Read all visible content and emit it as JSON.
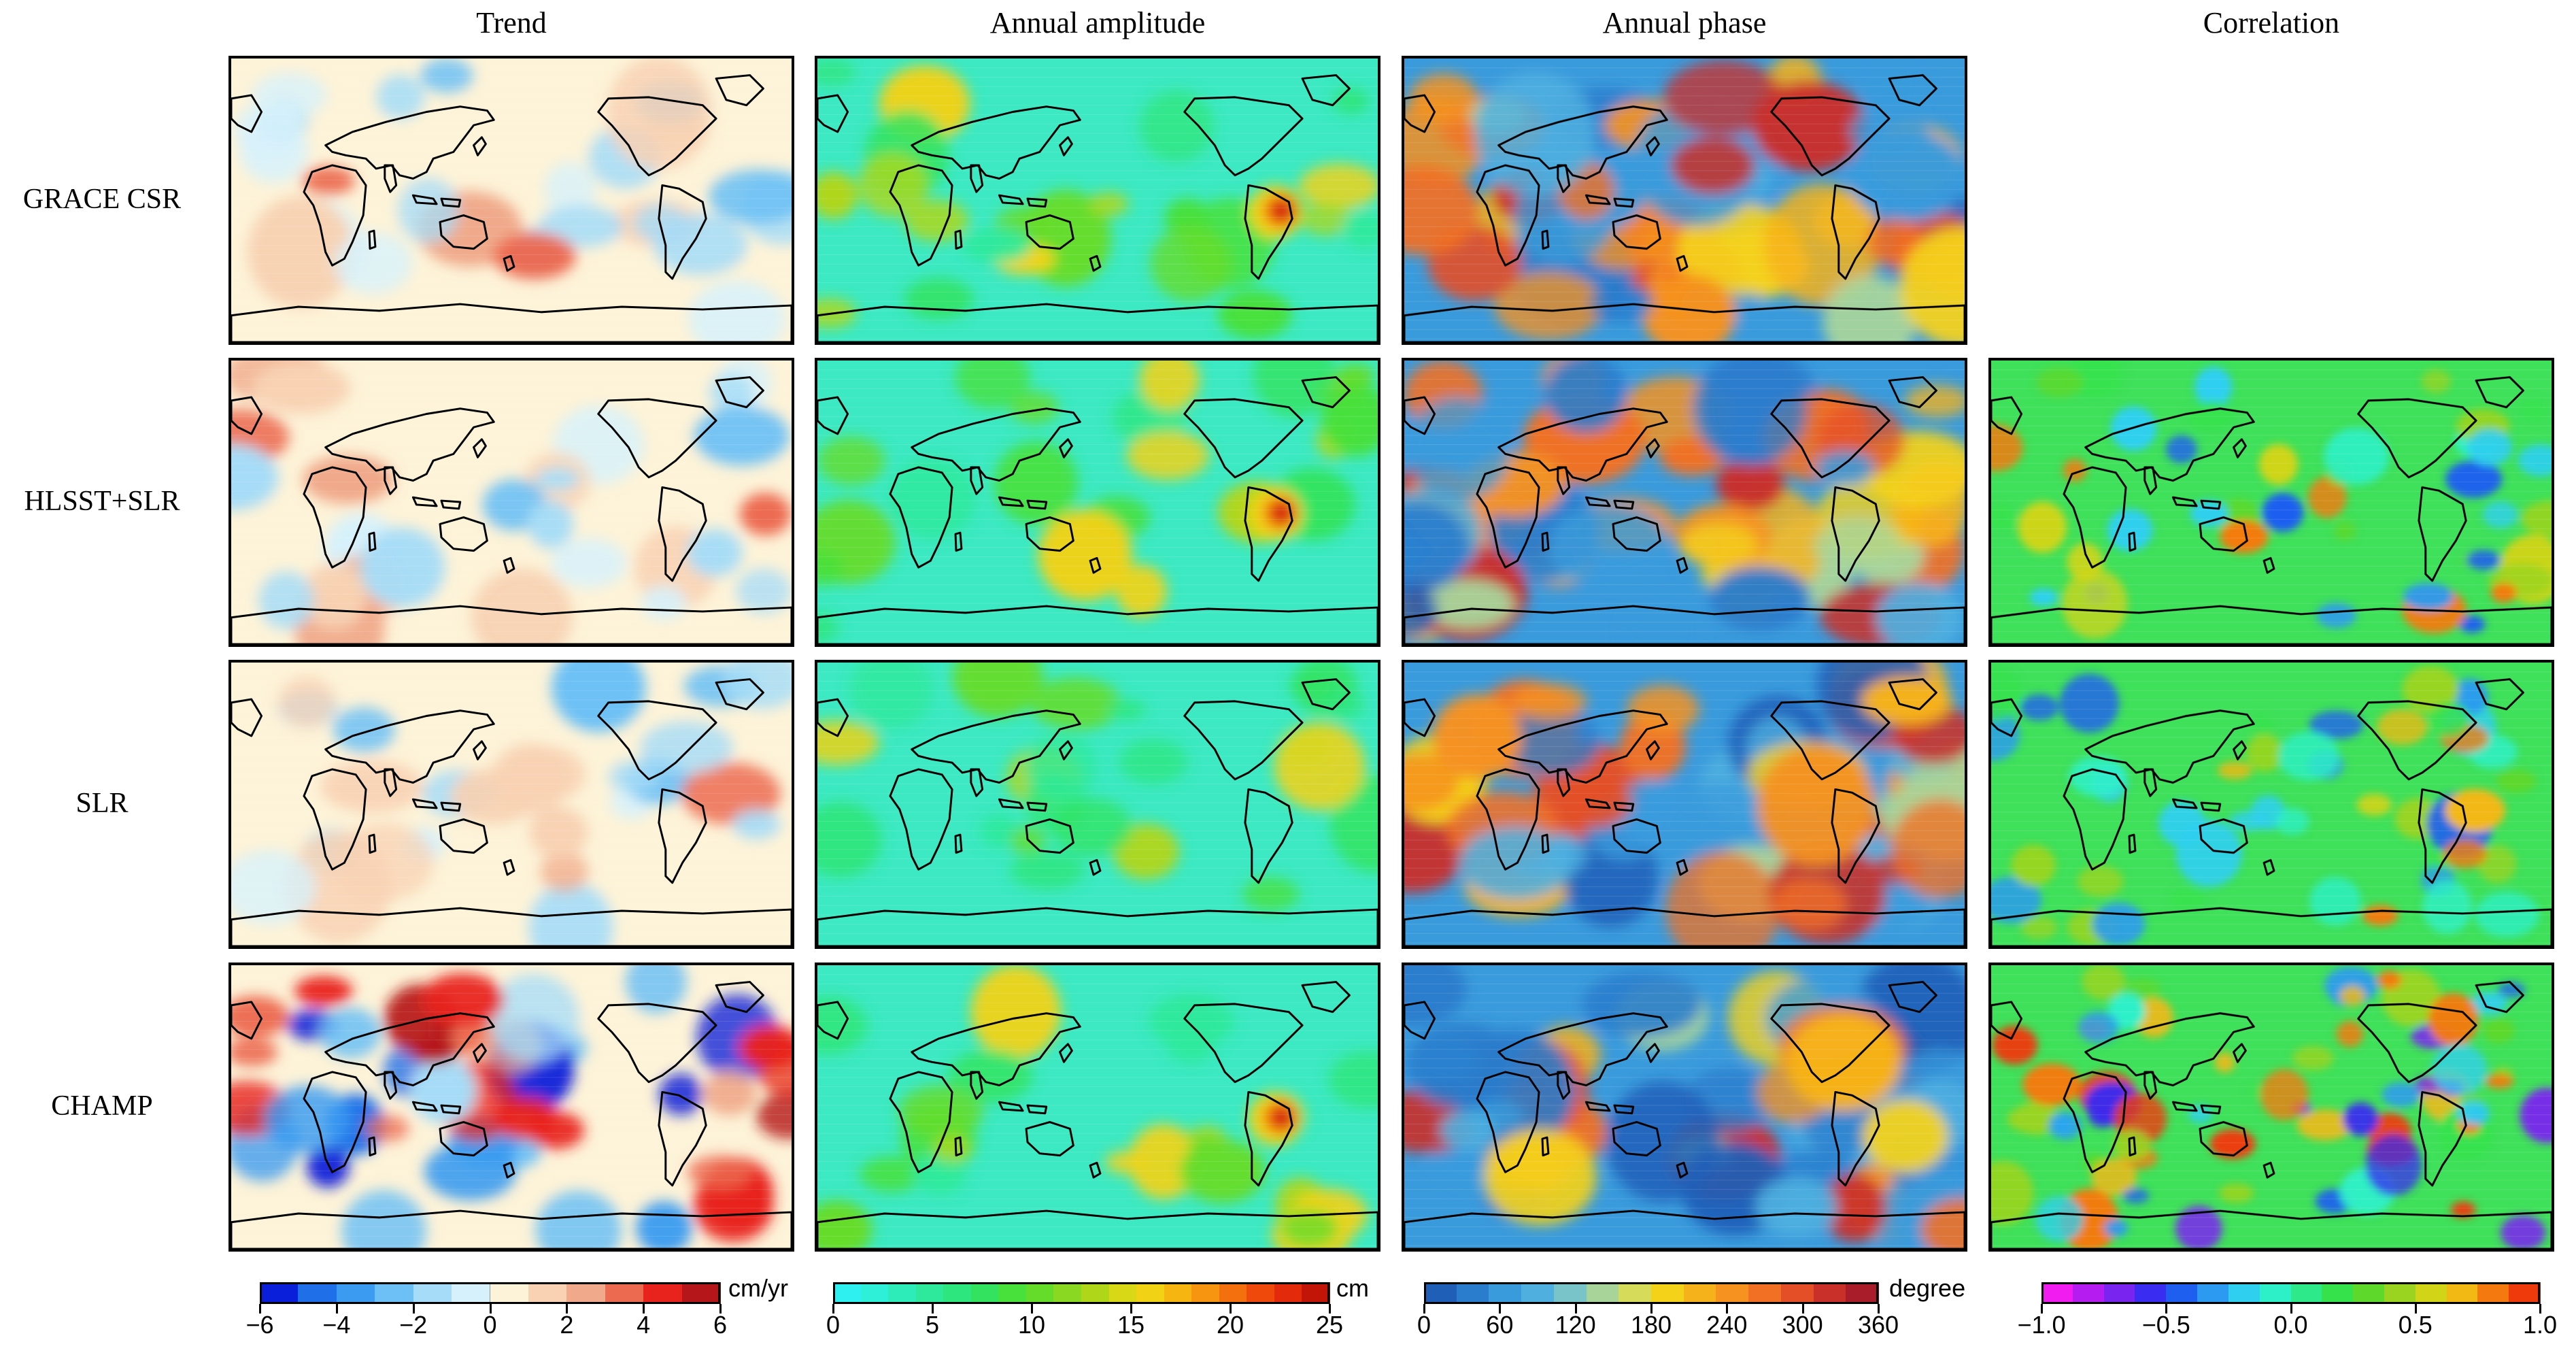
{
  "columns": [
    {
      "id": "trend",
      "title": "Trend",
      "colormap": "diverging"
    },
    {
      "id": "amp",
      "title": "Annual amplitude",
      "colormap": "amplitude"
    },
    {
      "id": "phase",
      "title": "Annual phase",
      "colormap": "phase"
    },
    {
      "id": "corr",
      "title": "Correlation",
      "colormap": "correlation"
    }
  ],
  "rows": [
    {
      "id": "grace",
      "label": "GRACE CSR",
      "has_correlation": false
    },
    {
      "id": "hlsst",
      "label": "HLSST+SLR",
      "has_correlation": true
    },
    {
      "id": "slr",
      "label": "SLR",
      "has_correlation": true
    },
    {
      "id": "champ",
      "label": "CHAMP",
      "has_correlation": true
    }
  ],
  "colorbars": [
    {
      "id": "trend",
      "unit": "cm/yr",
      "ticks": [
        "−6",
        "−4",
        "−2",
        "0",
        "2",
        "4",
        "6"
      ],
      "colors": [
        "#0a1fd9",
        "#1f6fe8",
        "#3a9bf0",
        "#6cc0f5",
        "#a6dcf7",
        "#d6f1fb",
        "#fdf3d8",
        "#f8d2b3",
        "#f0a98a",
        "#ec6a50",
        "#e8231e",
        "#b5161a"
      ]
    },
    {
      "id": "amp",
      "unit": "cm",
      "ticks": [
        "0",
        "5",
        "10",
        "15",
        "20",
        "25"
      ],
      "colors": [
        "#2ff0f0",
        "#2ef0d8",
        "#2eecba",
        "#2ee99c",
        "#2ee67e",
        "#33e35f",
        "#48e03a",
        "#66dc2a",
        "#8ad821",
        "#b0d61a",
        "#d8d816",
        "#f2d214",
        "#f7b512",
        "#f79410",
        "#f4700e",
        "#ef4a0c",
        "#e32a0a",
        "#c21508"
      ]
    },
    {
      "id": "phase",
      "unit": "degree",
      "ticks": [
        "0",
        "60",
        "120",
        "180",
        "240",
        "300",
        "360"
      ],
      "colors": [
        "#1f5fb8",
        "#2a7ccc",
        "#3a9bdc",
        "#4fb0e0",
        "#78c4c8",
        "#a8d49a",
        "#d6dc5a",
        "#f4d21a",
        "#f6b21a",
        "#f59220",
        "#f27024",
        "#e44f28",
        "#c9302a",
        "#a91c2a"
      ]
    },
    {
      "id": "corr",
      "unit": "",
      "ticks": [
        "−1.0",
        "−0.5",
        "0.0",
        "0.5",
        "1.0"
      ],
      "colors": [
        "#f01cf0",
        "#b41cf0",
        "#7a24f0",
        "#3a2cf0",
        "#1f5ff0",
        "#2c9af0",
        "#2fcff0",
        "#2ef0c8",
        "#2ee98a",
        "#36e24c",
        "#5ed82a",
        "#9ad420",
        "#d2d418",
        "#f2b814",
        "#f47a10",
        "#ef3a0c"
      ]
    }
  ]
}
